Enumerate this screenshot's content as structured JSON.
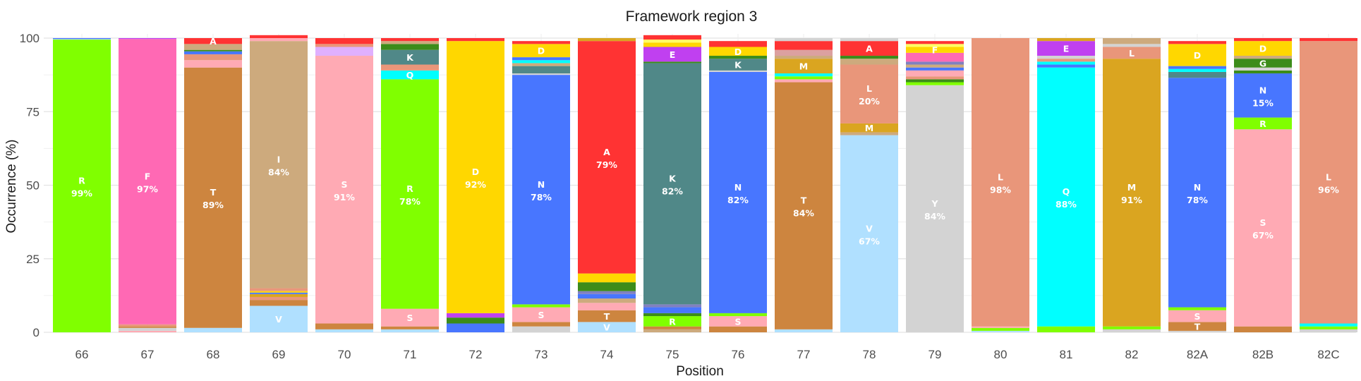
{
  "chart_data": {
    "type": "bar",
    "stacked": true,
    "title": "Framework region 3",
    "xlabel": "Position",
    "ylabel": "Occurrence (%)",
    "ylim": [
      0,
      100
    ],
    "yticks": [
      0,
      25,
      50,
      75,
      100
    ],
    "grid": true,
    "legend": "none",
    "colors": {
      "A": "#ff3333",
      "R": "#80ff00",
      "N": "#4876ff",
      "D": "#ffd700",
      "C": "#ffff66",
      "Q": "#00ffff",
      "E": "#c040f0",
      "G": "#3c8c1a",
      "H": "#8080c0",
      "I": "#cdaa7d",
      "L": "#e9967a",
      "K": "#508888",
      "M": "#daa520",
      "F": "#ff69b4",
      "P": "#dca0a0",
      "S": "#ffaab4",
      "T": "#cd853f",
      "W": "#e0b0ff",
      "Y": "#d3d3d3",
      "V": "#b0e0ff",
      "X": "#bdbdbd"
    },
    "categories": [
      "66",
      "67",
      "68",
      "69",
      "70",
      "71",
      "72",
      "73",
      "74",
      "75",
      "76",
      "77",
      "78",
      "79",
      "80",
      "81",
      "82",
      "82A",
      "82B",
      "82C"
    ],
    "stacks": [
      [
        [
          "R",
          99.5
        ],
        [
          "V",
          0.2
        ],
        [
          "N",
          0.3
        ]
      ],
      [
        [
          "S",
          0.5
        ],
        [
          "Y",
          1.0
        ],
        [
          "T",
          0.5
        ],
        [
          "L",
          0.7
        ],
        [
          "F",
          97.0
        ],
        [
          "E",
          0.3
        ]
      ],
      [
        [
          "V",
          1.5
        ],
        [
          "T",
          88.5
        ],
        [
          "S",
          2.5
        ],
        [
          "L",
          2.0
        ],
        [
          "N",
          1.0
        ],
        [
          "G",
          0.5
        ],
        [
          "I",
          2.0
        ],
        [
          "A",
          2.0
        ]
      ],
      [
        [
          "V",
          9.0
        ],
        [
          "T",
          2.0
        ],
        [
          "L",
          1.0
        ],
        [
          "M",
          1.0
        ],
        [
          "N",
          0.5
        ],
        [
          "D",
          0.5
        ],
        [
          "L",
          1.0
        ],
        [
          "I",
          84.0
        ],
        [
          "S",
          1.0
        ],
        [
          "A",
          1.0
        ]
      ],
      [
        [
          "V",
          1.0
        ],
        [
          "T",
          2.0
        ],
        [
          "S",
          91.0
        ],
        [
          "W",
          3.0
        ],
        [
          "L",
          1.0
        ],
        [
          "A",
          2.0
        ]
      ],
      [
        [
          "V",
          1.0
        ],
        [
          "T",
          1.0
        ],
        [
          "S",
          6.0
        ],
        [
          "R",
          78.0
        ],
        [
          "Q",
          3.0
        ],
        [
          "L",
          2.0
        ],
        [
          "K",
          5.0
        ],
        [
          "G",
          2.0
        ],
        [
          "I",
          1.0
        ],
        [
          "A",
          1.0
        ]
      ],
      [
        [
          "N",
          3.0
        ],
        [
          "G",
          2.0
        ],
        [
          "E",
          1.5
        ],
        [
          "D",
          92.5
        ],
        [
          "A",
          1.0
        ]
      ],
      [
        [
          "Y",
          2.0
        ],
        [
          "T",
          1.5
        ],
        [
          "S",
          5.0
        ],
        [
          "R",
          1.0
        ],
        [
          "N",
          78.0
        ],
        [
          "Y",
          0.5
        ],
        [
          "K",
          2.5
        ],
        [
          "I",
          1.0
        ],
        [
          "Q",
          1.0
        ],
        [
          "N",
          1.0
        ],
        [
          "D",
          4.5
        ],
        [
          "A",
          1.0
        ]
      ],
      [
        [
          "V",
          3.5
        ],
        [
          "T",
          4.0
        ],
        [
          "S",
          2.5
        ],
        [
          "I",
          1.5
        ],
        [
          "N",
          1.5
        ],
        [
          "H",
          1.0
        ],
        [
          "G",
          3.0
        ],
        [
          "D",
          3.0
        ],
        [
          "A",
          79.0
        ],
        [
          "M",
          1.0
        ]
      ],
      [
        [
          "I",
          1.0
        ],
        [
          "T",
          1.0
        ],
        [
          "R",
          3.5
        ],
        [
          "G",
          1.0
        ],
        [
          "N",
          2.0
        ],
        [
          "H",
          1.0
        ],
        [
          "K",
          82.0
        ],
        [
          "G",
          0.5
        ],
        [
          "E",
          5.0
        ],
        [
          "D",
          1.5
        ],
        [
          "C",
          1.0
        ],
        [
          "A",
          1.5
        ]
      ],
      [
        [
          "T",
          2.0
        ],
        [
          "S",
          3.5
        ],
        [
          "R",
          1.0
        ],
        [
          "N",
          82.0
        ],
        [
          "Y",
          0.5
        ],
        [
          "K",
          4.0
        ],
        [
          "G",
          1.0
        ],
        [
          "D",
          3.0
        ],
        [
          "A",
          2.0
        ]
      ],
      [
        [
          "V",
          1.0
        ],
        [
          "T",
          84.0
        ],
        [
          "S",
          1.0
        ],
        [
          "R",
          1.0
        ],
        [
          "Q",
          1.0
        ],
        [
          "M",
          5.0
        ],
        [
          "I",
          1.0
        ],
        [
          "P",
          2.0
        ],
        [
          "A",
          3.0
        ],
        [
          "Y",
          1.0
        ]
      ],
      [
        [
          "V",
          67.0
        ],
        [
          "I",
          1.0
        ],
        [
          "M",
          3.0
        ],
        [
          "L",
          20.0
        ],
        [
          "I",
          2.0
        ],
        [
          "G",
          1.0
        ],
        [
          "A",
          5.0
        ],
        [
          "Y",
          1.0
        ]
      ],
      [
        [
          "Y",
          84.0
        ],
        [
          "R",
          1.0
        ],
        [
          "G",
          1.0
        ],
        [
          "L",
          1.0
        ],
        [
          "S",
          2.0
        ],
        [
          "N",
          1.0
        ],
        [
          "I",
          1.0
        ],
        [
          "H",
          1.0
        ],
        [
          "F",
          3.0
        ],
        [
          "D",
          2.0
        ],
        [
          "C",
          1.0
        ],
        [
          "A",
          1.0
        ]
      ],
      [
        [
          "V",
          0.5
        ],
        [
          "R",
          1.0
        ],
        [
          "S",
          0.5
        ],
        [
          "L",
          98.0
        ]
      ],
      [
        [
          "R",
          2.0
        ],
        [
          "Q",
          88.0
        ],
        [
          "N",
          1.0
        ],
        [
          "Q",
          1.0
        ],
        [
          "L",
          1.0
        ],
        [
          "Y",
          1.0
        ],
        [
          "E",
          5.0
        ],
        [
          "M",
          1.0
        ]
      ],
      [
        [
          "Y",
          1.0
        ],
        [
          "R",
          1.0
        ],
        [
          "M",
          91.0
        ],
        [
          "L",
          4.0
        ],
        [
          "Y",
          1.0
        ],
        [
          "I",
          2.0
        ]
      ],
      [
        [
          "Y",
          0.5
        ],
        [
          "T",
          3.0
        ],
        [
          "S",
          4.0
        ],
        [
          "R",
          1.0
        ],
        [
          "N",
          78.0
        ],
        [
          "K",
          2.0
        ],
        [
          "Q",
          1.0
        ],
        [
          "N",
          1.0
        ],
        [
          "D",
          7.5
        ],
        [
          "A",
          1.0
        ]
      ],
      [
        [
          "T",
          2.0
        ],
        [
          "S",
          67.0
        ],
        [
          "R",
          4.0
        ],
        [
          "N",
          15.0
        ],
        [
          "G",
          1.0
        ],
        [
          "Y",
          1.0
        ],
        [
          "G",
          3.0
        ],
        [
          "I",
          1.0
        ],
        [
          "D",
          5.0
        ],
        [
          "A",
          1.0
        ]
      ],
      [
        [
          "Y",
          1.0
        ],
        [
          "R",
          1.0
        ],
        [
          "Q",
          1.0
        ],
        [
          "L",
          96.0
        ],
        [
          "A",
          1.0
        ]
      ]
    ],
    "segment_labels": [
      [
        {
          "seg": 0,
          "letter": "R",
          "pct": "99%"
        }
      ],
      [
        {
          "seg": 4,
          "letter": "F",
          "pct": "97%"
        }
      ],
      [
        {
          "seg": 1,
          "letter": "T",
          "pct": "89%"
        },
        {
          "seg": 7,
          "letter": "A"
        }
      ],
      [
        {
          "seg": 0,
          "letter": "V"
        },
        {
          "seg": 7,
          "letter": "I",
          "pct": "84%"
        }
      ],
      [
        {
          "seg": 2,
          "letter": "S",
          "pct": "91%"
        }
      ],
      [
        {
          "seg": 2,
          "letter": "S"
        },
        {
          "seg": 3,
          "letter": "R",
          "pct": "78%"
        },
        {
          "seg": 4,
          "letter": "Q"
        },
        {
          "seg": 6,
          "letter": "K"
        }
      ],
      [
        {
          "seg": 3,
          "letter": "D",
          "pct": "92%"
        }
      ],
      [
        {
          "seg": 2,
          "letter": "S"
        },
        {
          "seg": 4,
          "letter": "N",
          "pct": "78%"
        },
        {
          "seg": 10,
          "letter": "D"
        }
      ],
      [
        {
          "seg": 0,
          "letter": "V"
        },
        {
          "seg": 1,
          "letter": "T"
        },
        {
          "seg": 8,
          "letter": "A",
          "pct": "79%"
        }
      ],
      [
        {
          "seg": 2,
          "letter": "R"
        },
        {
          "seg": 6,
          "letter": "K",
          "pct": "82%"
        },
        {
          "seg": 8,
          "letter": "E"
        }
      ],
      [
        {
          "seg": 1,
          "letter": "S"
        },
        {
          "seg": 3,
          "letter": "N",
          "pct": "82%"
        },
        {
          "seg": 5,
          "letter": "K"
        },
        {
          "seg": 7,
          "letter": "D"
        }
      ],
      [
        {
          "seg": 1,
          "letter": "T",
          "pct": "84%"
        },
        {
          "seg": 5,
          "letter": "M"
        }
      ],
      [
        {
          "seg": 0,
          "letter": "V",
          "pct": "67%"
        },
        {
          "seg": 2,
          "letter": "M"
        },
        {
          "seg": 3,
          "letter": "L",
          "pct": "20%"
        },
        {
          "seg": 6,
          "letter": "A"
        }
      ],
      [
        {
          "seg": 0,
          "letter": "Y",
          "pct": "84%"
        },
        {
          "seg": 9,
          "letter": "F"
        }
      ],
      [
        {
          "seg": 3,
          "letter": "L",
          "pct": "98%"
        }
      ],
      [
        {
          "seg": 1,
          "letter": "Q",
          "pct": "88%"
        },
        {
          "seg": 6,
          "letter": "E"
        }
      ],
      [
        {
          "seg": 2,
          "letter": "M",
          "pct": "91%"
        },
        {
          "seg": 3,
          "letter": "L"
        }
      ],
      [
        {
          "seg": 1,
          "letter": "T"
        },
        {
          "seg": 2,
          "letter": "S"
        },
        {
          "seg": 4,
          "letter": "N",
          "pct": "78%"
        },
        {
          "seg": 8,
          "letter": "D"
        }
      ],
      [
        {
          "seg": 1,
          "letter": "S",
          "pct": "67%"
        },
        {
          "seg": 2,
          "letter": "R"
        },
        {
          "seg": 3,
          "letter": "N",
          "pct": "15%"
        },
        {
          "seg": 6,
          "letter": "G"
        },
        {
          "seg": 8,
          "letter": "D"
        }
      ],
      [
        {
          "seg": 3,
          "letter": "L",
          "pct": "96%"
        }
      ]
    ]
  }
}
